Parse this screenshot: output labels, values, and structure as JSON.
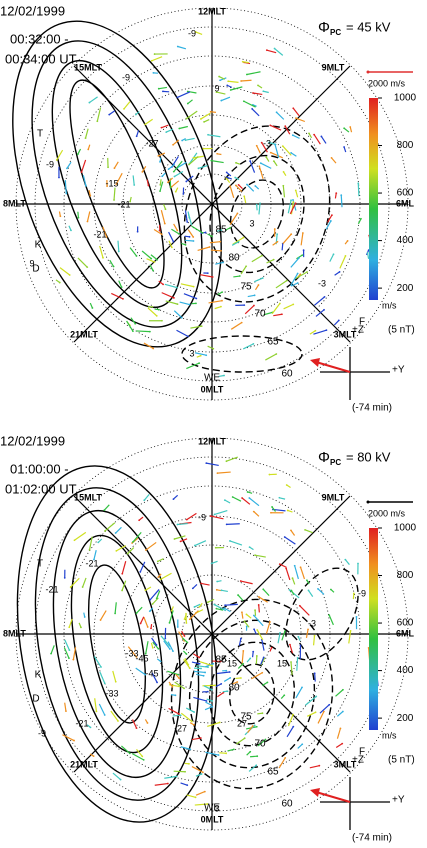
{
  "panels": [
    {
      "date": "12/02/1999",
      "time_start": "00:32:00 -",
      "time_end": "00:34:00 UT",
      "potential_symbol": "Φ",
      "potential_subscript": "PC",
      "potential_value": "=  45  kV",
      "scale_label": "2000 m/s",
      "scale_color": "#e03030",
      "mlt_labels": [
        "12MLT",
        "15MLT",
        "9MLT",
        "8MLT",
        "6ML",
        "21MLT",
        "3MLT",
        "0MLT"
      ],
      "lat_labels": [
        "85",
        "80",
        "75",
        "70",
        "65",
        "60"
      ],
      "contour_labels": [
        "-9",
        "-9",
        "-15",
        "-21",
        "-21",
        "-27",
        "-9",
        "9",
        "3",
        "-3",
        "-3",
        "3",
        "9"
      ],
      "region_labels": [
        "T",
        "K",
        "D",
        "F",
        "WE"
      ],
      "colorbar": {
        "lim": [
          150,
          1000
        ],
        "ticks": [
          200,
          400,
          600,
          800,
          1000
        ],
        "unit": "m/s"
      },
      "imf": {
        "z_label": "+Z",
        "magnitude_label": "(5 nT)",
        "y_label": "+Y",
        "delay_label": "(-74 min)"
      }
    },
    {
      "date": "12/02/1999",
      "time_start": "01:00:00 -",
      "time_end": "01:02:00 UT",
      "potential_symbol": "Φ",
      "potential_subscript": "PC",
      "potential_value": "=  80  kV",
      "scale_label": "2000 m/s",
      "scale_color": "#000000",
      "mlt_labels": [
        "12MLT",
        "15MLT",
        "9MLT",
        "8MLT",
        "6ML",
        "21MLT",
        "3MLT",
        "0MLT"
      ],
      "lat_labels": [
        "85",
        "80",
        "75",
        "70",
        "65",
        "60"
      ],
      "contour_labels": [
        "-9",
        "-21",
        "-21",
        "-33",
        "-45",
        "-45",
        "-33",
        "-21",
        "-9",
        "15",
        "27",
        "27",
        "15",
        "3",
        "-3",
        "-9"
      ],
      "region_labels": [
        "T",
        "K",
        "D",
        "F",
        "WE"
      ],
      "colorbar": {
        "lim": [
          150,
          1000
        ],
        "ticks": [
          200,
          400,
          600,
          800,
          1000
        ],
        "unit": "m/s"
      },
      "imf": {
        "z_label": "+Z",
        "magnitude_label": "(5 nT)",
        "y_label": "+Y",
        "delay_label": "(-74 min)"
      }
    }
  ]
}
